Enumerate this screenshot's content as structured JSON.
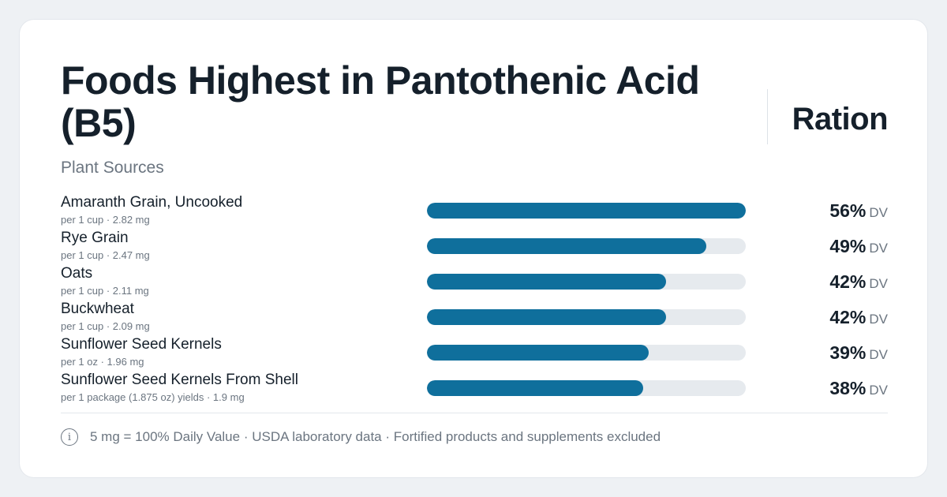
{
  "header": {
    "title": "Foods Highest in Pantothenic Acid (B5)",
    "subtitle": "Plant Sources",
    "brand": "Ration"
  },
  "chart_data": {
    "type": "bar",
    "orientation": "horizontal",
    "title": "Foods Highest in Pantothenic Acid (B5)",
    "subtitle": "Plant Sources",
    "value_unit": "DV",
    "xlim": [
      0,
      56
    ],
    "categories": [
      "Amaranth Grain, Uncooked",
      "Rye Grain",
      "Oats",
      "Buckwheat",
      "Sunflower Seed Kernels",
      "Sunflower Seed Kernels From Shell"
    ],
    "servings": [
      "per 1 cup · 2.82 mg",
      "per 1 cup · 2.47 mg",
      "per 1 cup · 2.11 mg",
      "per 1 cup · 2.09 mg",
      "per 1 oz · 1.96 mg",
      "per 1 package (1.875 oz) yields · 1.9 mg"
    ],
    "values": [
      56,
      49,
      42,
      42,
      39,
      38
    ],
    "value_labels": [
      "56%",
      "49%",
      "42%",
      "42%",
      "39%",
      "38%"
    ],
    "bar_color": "#0f6f9c",
    "track_color": "#e6eaee"
  },
  "footer": {
    "icon": "info-icon",
    "icon_glyph": "i",
    "note": "5 mg = 100% Daily Value · USDA laboratory data · Fortified products and supplements excluded"
  }
}
